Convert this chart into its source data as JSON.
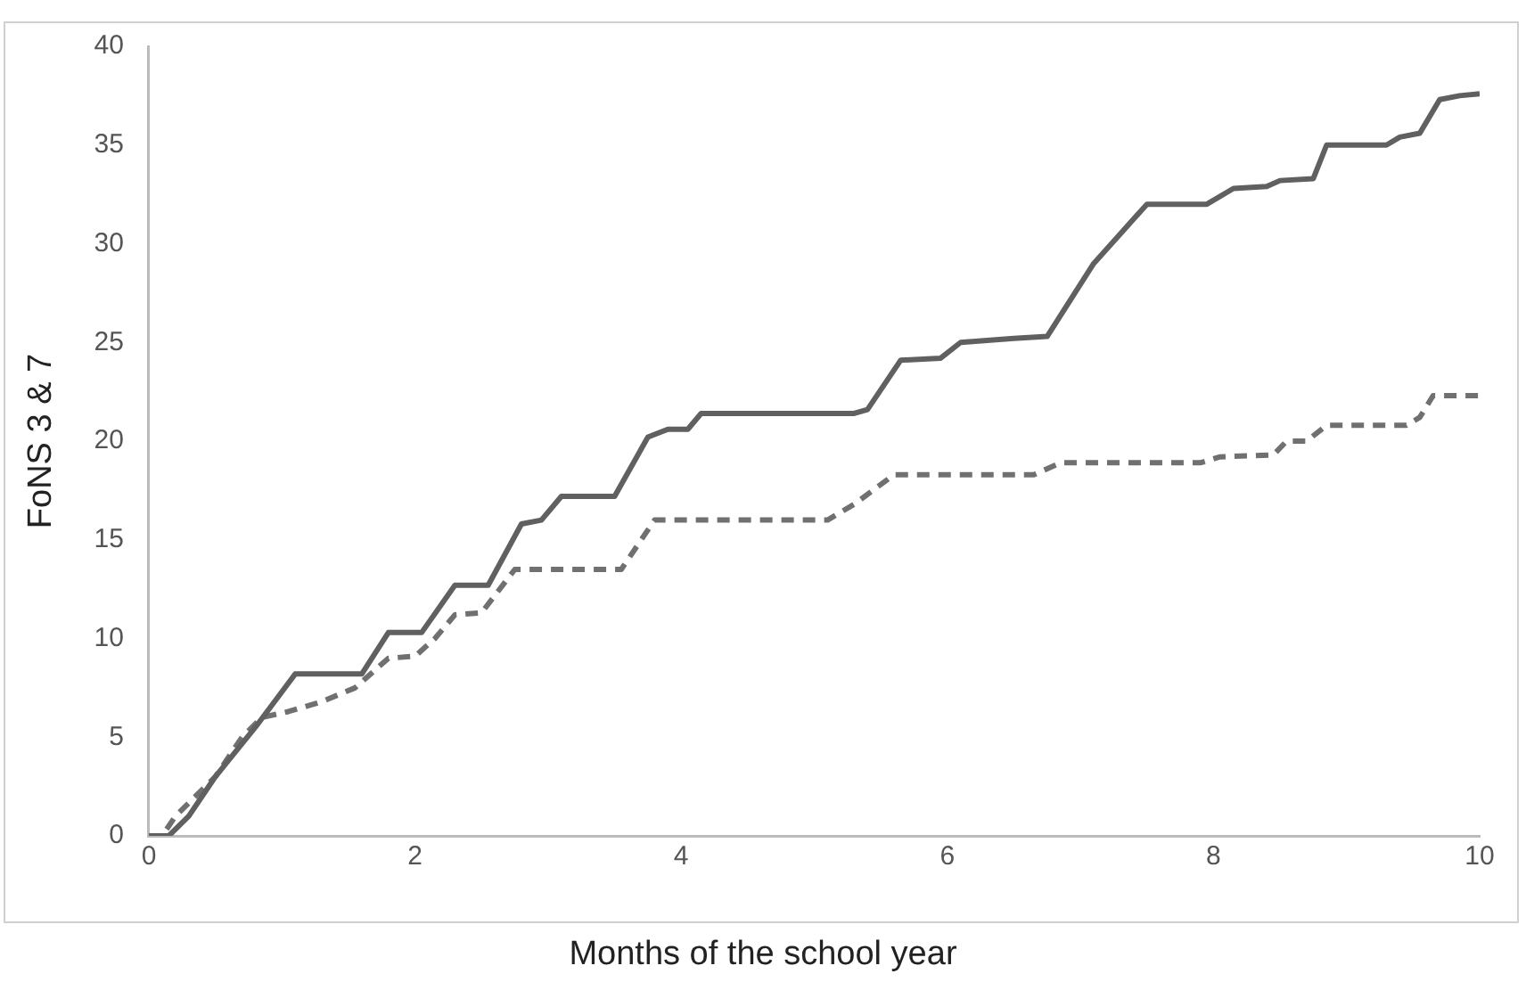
{
  "chart_data": {
    "type": "line",
    "xlabel": "Months of the school year",
    "ylabel": "FoNS 3 & 7",
    "xlim": [
      0,
      10
    ],
    "xticks": [
      0,
      2,
      4,
      6,
      8,
      10
    ],
    "ylim": [
      0,
      40
    ],
    "yticks": [
      0,
      5,
      10,
      15,
      20,
      25,
      30,
      35,
      40
    ],
    "grid": false,
    "legend": false,
    "marker": "none",
    "series": [
      {
        "color": "#606060",
        "line_style": "solid",
        "x": [
          0,
          0.15,
          0.3,
          0.5,
          0.8,
          1.1,
          1.6,
          1.8,
          2.05,
          2.3,
          2.55,
          2.8,
          2.95,
          3.1,
          3.5,
          3.75,
          3.9,
          4.05,
          4.15,
          5.3,
          5.4,
          5.65,
          5.95,
          6.1,
          6.5,
          6.75,
          7.1,
          7.5,
          7.95,
          8.15,
          8.4,
          8.5,
          8.75,
          8.85,
          9.3,
          9.4,
          9.55,
          9.7,
          9.85,
          10
        ],
        "values": [
          0,
          0,
          1,
          3,
          5.5,
          8.2,
          8.2,
          10.3,
          10.3,
          12.7,
          12.7,
          15.8,
          16,
          17.2,
          17.2,
          20.2,
          20.6,
          20.6,
          21.4,
          21.4,
          21.6,
          24.1,
          24.2,
          25,
          25.2,
          25.3,
          29,
          32,
          32,
          32.8,
          32.9,
          33.2,
          33.3,
          35,
          35,
          35.4,
          35.6,
          37.3,
          37.5,
          37.6
        ]
      },
      {
        "color": "#707070",
        "line_style": "dashed",
        "x": [
          0,
          0.1,
          0.2,
          0.5,
          0.7,
          0.85,
          1.05,
          1.3,
          1.55,
          1.8,
          2,
          2.15,
          2.3,
          2.5,
          2.75,
          3.55,
          3.8,
          5.1,
          5.3,
          5.6,
          6.65,
          6.85,
          7.9,
          8.05,
          8.45,
          8.55,
          8.7,
          8.85,
          9.45,
          9.55,
          9.65,
          10
        ],
        "values": [
          0,
          0,
          1,
          3,
          5,
          6,
          6.3,
          6.8,
          7.5,
          9,
          9.1,
          10,
          11.2,
          11.3,
          13.5,
          13.5,
          16,
          16,
          16.8,
          18.3,
          18.3,
          18.9,
          18.9,
          19.2,
          19.3,
          20,
          20,
          20.8,
          20.8,
          21.2,
          22.3,
          22.3
        ]
      }
    ]
  }
}
